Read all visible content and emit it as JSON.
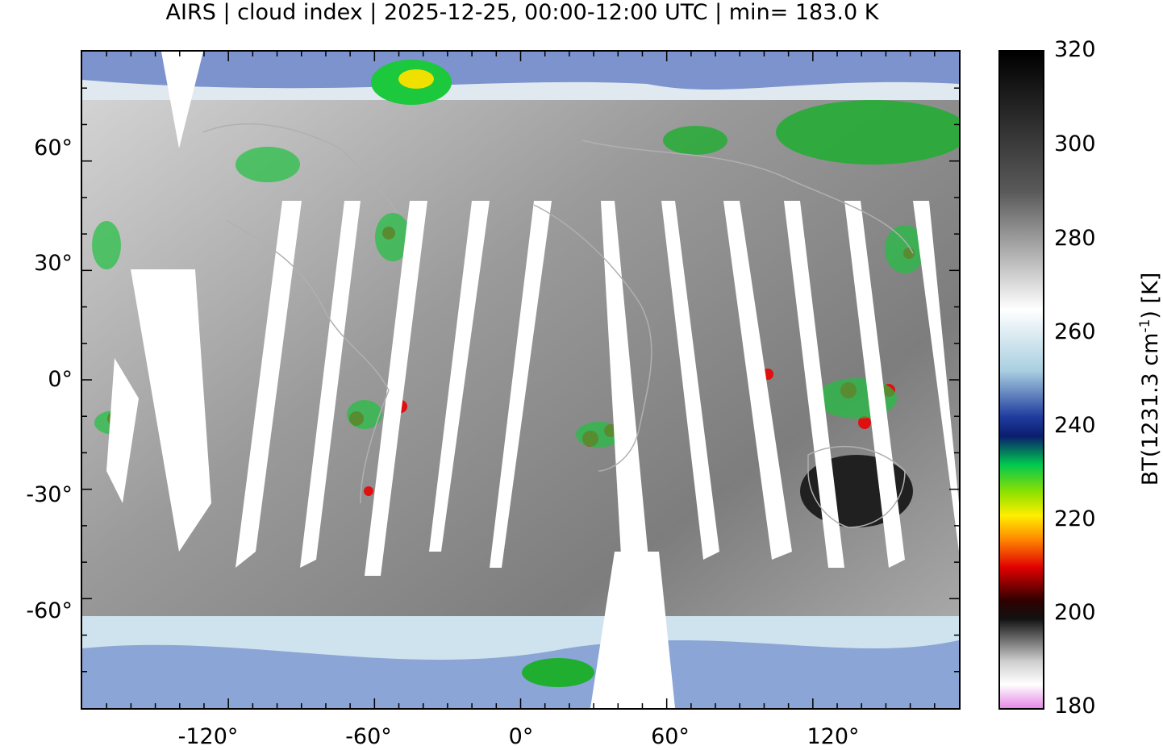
{
  "title": "AIRS | cloud index | 2025-12-25, 00:00-12:00 UTC | min= 183.0 K",
  "map": {
    "projection": "equirectangular",
    "lat_ticks": [
      "60°",
      "30°",
      "0°",
      "-30°",
      "-60°"
    ],
    "lon_ticks": [
      "-120°",
      "-60°",
      "0°",
      "60°",
      "120°"
    ],
    "lat_values": [
      60,
      30,
      0,
      -30,
      -60
    ],
    "lon_values": [
      -120,
      -60,
      0,
      60,
      120
    ],
    "lon_range": [
      -180,
      180
    ],
    "lat_range": [
      -90,
      90
    ],
    "swath_gaps": "white orbital gaps between AIRS swaths",
    "coastlines": "grey"
  },
  "colorbar": {
    "ticks": [
      "320",
      "300",
      "280",
      "260",
      "240",
      "220",
      "200",
      "180"
    ],
    "values": [
      320,
      300,
      280,
      260,
      240,
      220,
      200,
      180
    ],
    "range": [
      180,
      320
    ],
    "label_main": "BT(1231.3 cm",
    "label_sup": "-1",
    "label_end": ") [K]",
    "colors": {
      "c320": "#000000",
      "c290": "#5a5a5a",
      "c265": "#ffffff",
      "c252": "#a9cfe0",
      "c242": "#1f3b9e",
      "c238": "#0a1e6e",
      "c232": "#00c850",
      "c226": "#8ee000",
      "c221": "#ffee00",
      "c216": "#ff8800",
      "c210": "#e00000",
      "c203": "#300000",
      "c199": "#111111",
      "c190": "#cfcfcf",
      "c185": "#ffffff",
      "c180": "#e58ae5"
    }
  }
}
